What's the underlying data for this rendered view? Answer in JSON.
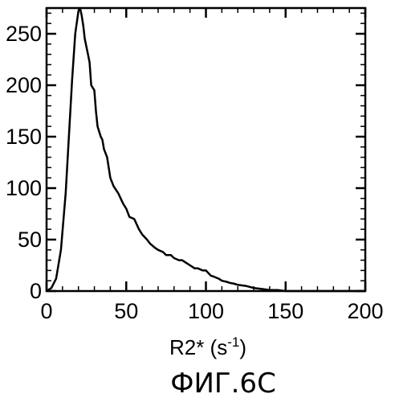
{
  "figure": {
    "caption": "ФИГ.6С"
  },
  "chart_data": {
    "type": "line",
    "title": "",
    "xlabel": "R2* (s",
    "xlabel_superscript": "-1",
    "xlabel_suffix": ")",
    "ylabel": "",
    "xlim": [
      0,
      200
    ],
    "ylim": [
      0,
      275
    ],
    "x_ticks": [
      "0",
      "50",
      "100",
      "150",
      "200"
    ],
    "y_ticks": [
      "0",
      "50",
      "100",
      "150",
      "200",
      "250"
    ],
    "grid": false,
    "legend": "none",
    "series": [
      {
        "x": [
          0,
          3,
          6,
          9,
          12,
          14,
          16,
          18,
          20,
          21,
          22,
          23,
          24,
          26,
          27,
          28,
          30,
          31,
          32,
          34,
          35,
          36,
          38,
          40,
          42,
          45,
          48,
          50,
          52,
          55,
          58,
          60,
          63,
          65,
          68,
          70,
          73,
          75,
          78,
          80,
          83,
          85,
          88,
          90,
          93,
          95,
          98,
          100,
          103,
          105,
          108,
          110,
          113,
          115,
          118,
          120,
          125,
          130,
          135,
          140,
          145,
          150,
          160,
          170,
          180,
          190,
          200
        ],
        "y": [
          0,
          3,
          12,
          40,
          95,
          150,
          205,
          250,
          272,
          275,
          268,
          258,
          245,
          230,
          222,
          200,
          195,
          175,
          160,
          150,
          147,
          138,
          130,
          110,
          102,
          95,
          85,
          80,
          72,
          70,
          60,
          55,
          50,
          46,
          42,
          40,
          38,
          35,
          35,
          32,
          30,
          30,
          27,
          25,
          22,
          22,
          20,
          20,
          15,
          14,
          12,
          10,
          9,
          8,
          7,
          6,
          5,
          3,
          2,
          1,
          1,
          0,
          0,
          0,
          0,
          0,
          0
        ]
      }
    ]
  }
}
